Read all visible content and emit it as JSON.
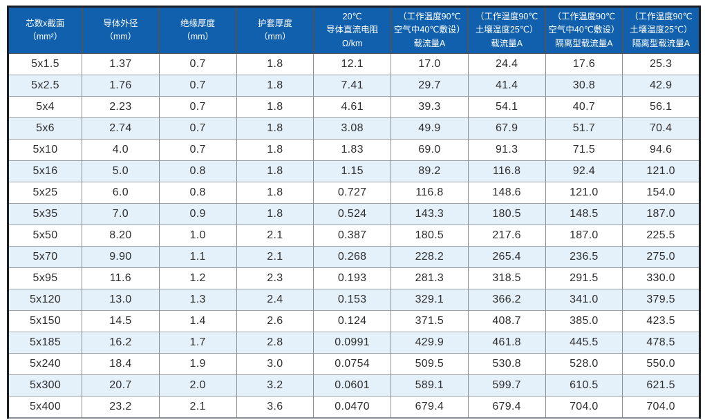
{
  "colors": {
    "header_bg": "#1060ae",
    "header_text": "#ffffff",
    "row_alt_bg": "#e4f1fa",
    "row_bg": "#ffffff",
    "outer_border": "#1c1f24",
    "inner_border": "#8a8f94",
    "cell_text": "#2e2e2e"
  },
  "table": {
    "headers": [
      "芯数x截面\n（mm²）",
      "导体外径\n（mm）",
      "绝缘厚度\n（mm）",
      "护套厚度\n（mm）",
      "20℃\n导体直流电阻\nΩ/km",
      "（工作温度90℃\n空气中40℃敷设）\n载流量A",
      "（工作温度90℃\n土壤温度25℃）\n载流量A",
      "（工作温度90℃\n空气中40℃敷设）\n隔离型载流量A",
      "（工作温度90℃\n土壤温度25℃）\n隔离型载流量A"
    ],
    "rows": [
      [
        "5x1.5",
        "1.37",
        "0.7",
        "1.8",
        "12.1",
        "17.0",
        "24.4",
        "17.6",
        "25.3"
      ],
      [
        "5x2.5",
        "1.76",
        "0.7",
        "1.8",
        "7.41",
        "29.7",
        "41.4",
        "30.8",
        "42.9"
      ],
      [
        "5x4",
        "2.23",
        "0.7",
        "1.8",
        "4.61",
        "39.3",
        "54.1",
        "40.7",
        "56.1"
      ],
      [
        "5x6",
        "2.74",
        "0.7",
        "1.8",
        "3.08",
        "49.9",
        "67.9",
        "51.7",
        "70.4"
      ],
      [
        "5x10",
        "4.0",
        "0.7",
        "1.8",
        "1.83",
        "69.0",
        "91.3",
        "71.5",
        "94.6"
      ],
      [
        "5x16",
        "5.0",
        "0.8",
        "1.8",
        "1.15",
        "89.2",
        "116.8",
        "92.4",
        "121.0"
      ],
      [
        "5x25",
        "6.0",
        "0.8",
        "1.8",
        "0.727",
        "116.8",
        "148.6",
        "121.0",
        "154.0"
      ],
      [
        "5x35",
        "7.0",
        "0.9",
        "1.8",
        "0.524",
        "143.3",
        "180.5",
        "148.5",
        "187.0"
      ],
      [
        "5x50",
        "8.20",
        "1.0",
        "2.1",
        "0.387",
        "180.5",
        "217.6",
        "187.0",
        "225.5"
      ],
      [
        "5x70",
        "9.90",
        "1.1",
        "2.1",
        "0.268",
        "228.2",
        "265.4",
        "236.5",
        "275.0"
      ],
      [
        "5x95",
        "11.6",
        "1.2",
        "2.3",
        "0.193",
        "281.3",
        "318.5",
        "291.5",
        "330.0"
      ],
      [
        "5x120",
        "13.0",
        "1.3",
        "2.4",
        "0.153",
        "329.1",
        "366.2",
        "341.0",
        "379.5"
      ],
      [
        "5x150",
        "14.5",
        "1.4",
        "2.6",
        "0.124",
        "371.5",
        "408.7",
        "385.0",
        "423.5"
      ],
      [
        "5x185",
        "16.2",
        "1.7",
        "2.8",
        "0.0991",
        "429.9",
        "461.8",
        "445.5",
        "478.5"
      ],
      [
        "5x240",
        "18.4",
        "1.9",
        "3.0",
        "0.0754",
        "509.5",
        "530.8",
        "528.0",
        "550.0"
      ],
      [
        "5x300",
        "20.7",
        "2.0",
        "3.2",
        "0.0601",
        "589.1",
        "599.7",
        "610.5",
        "621.5"
      ],
      [
        "5x400",
        "23.2",
        "2.1",
        "3.6",
        "0.0470",
        "679.4",
        "679.4",
        "704.0",
        "704.0"
      ]
    ]
  }
}
